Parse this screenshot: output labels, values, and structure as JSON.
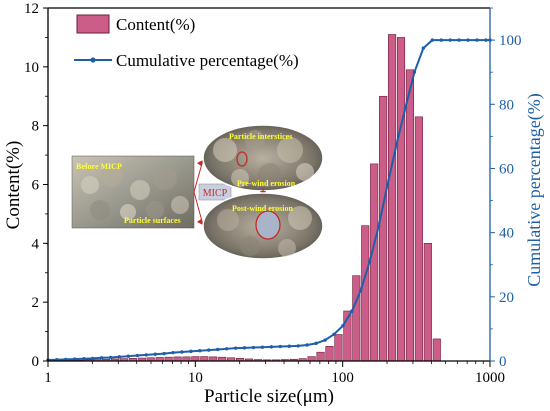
{
  "chart_data": {
    "type": "bar+line",
    "xlabel": "Particle size(μm)",
    "ylabel": "Content(%)",
    "y2label": "Cumulative percentage(%)",
    "xscale": "log",
    "xlim": [
      1,
      1000
    ],
    "ylim": [
      0,
      12
    ],
    "y2lim": [
      0,
      110
    ],
    "x_ticks": [
      "1",
      "10",
      "100",
      "1000"
    ],
    "y_ticks": [
      "0",
      "2",
      "4",
      "6",
      "8",
      "10",
      "12"
    ],
    "y2_ticks": [
      "0",
      "20",
      "40",
      "60",
      "80",
      "100"
    ],
    "legend": [
      "Content(%)",
      "Cumulative percentage(%)"
    ],
    "legend_position": "top-left",
    "colors": {
      "bar_fill": "#cc5c88",
      "bar_stroke": "#6b1e3b",
      "line": "#1f5fa8",
      "right_axis": "#1f5fa8"
    },
    "series": [
      {
        "name": "Content(%)",
        "type": "bar",
        "x": [
          1,
          1.15,
          1.32,
          1.52,
          1.75,
          2.01,
          2.31,
          2.66,
          3.05,
          3.51,
          4.04,
          4.64,
          5.34,
          6.14,
          7.06,
          8.12,
          9.33,
          10.73,
          12.34,
          14.19,
          16.32,
          18.77,
          21.58,
          24.82,
          28.54,
          32.82,
          37.74,
          43.4,
          49.91,
          57.4,
          66.0,
          75.9,
          87.3,
          100.4,
          115.4,
          132.7,
          152.6,
          175.5,
          201.8,
          232.1,
          266.9,
          306.9,
          353.0,
          405.9
        ],
        "values": [
          0.02,
          0.02,
          0.03,
          0.03,
          0.04,
          0.05,
          0.06,
          0.07,
          0.08,
          0.09,
          0.1,
          0.11,
          0.12,
          0.13,
          0.14,
          0.14,
          0.15,
          0.15,
          0.14,
          0.13,
          0.11,
          0.09,
          0.07,
          0.05,
          0.04,
          0.04,
          0.05,
          0.06,
          0.08,
          0.15,
          0.3,
          0.5,
          0.9,
          1.7,
          2.9,
          4.6,
          6.7,
          9.0,
          11.1,
          11.0,
          9.9,
          8.3,
          4.0,
          0.75
        ]
      },
      {
        "name": "Cumulative percentage(%)",
        "type": "line",
        "axis": "right",
        "x": [
          1,
          1.15,
          1.32,
          1.52,
          1.75,
          2.01,
          2.31,
          2.66,
          3.05,
          3.51,
          4.04,
          4.64,
          5.34,
          6.14,
          7.06,
          8.12,
          9.33,
          10.73,
          12.34,
          14.19,
          16.32,
          18.77,
          21.58,
          24.82,
          28.54,
          32.82,
          37.74,
          43.4,
          49.91,
          57.4,
          66.0,
          75.9,
          87.3,
          100.4,
          115.4,
          132.7,
          152.6,
          175.5,
          201.8,
          232.1,
          266.9,
          306.9,
          353.0,
          405.9,
          466.8,
          536.8,
          617.3,
          709.9,
          816.4,
          938.9,
          1000
        ],
        "values": [
          0.3,
          0.4,
          0.5,
          0.6,
          0.7,
          0.8,
          1.0,
          1.1,
          1.3,
          1.5,
          1.7,
          1.9,
          2.1,
          2.3,
          2.6,
          2.8,
          3.0,
          3.2,
          3.4,
          3.6,
          3.8,
          4.0,
          4.1,
          4.2,
          4.3,
          4.4,
          4.5,
          4.6,
          4.7,
          5.0,
          5.5,
          6.5,
          8.3,
          11.0,
          15.5,
          22.0,
          31.0,
          42.0,
          55.0,
          67.5,
          79.0,
          90.0,
          97.5,
          100,
          100,
          100,
          100,
          100,
          100,
          100,
          100
        ]
      }
    ],
    "inset": {
      "labels": {
        "before": "Before MICP",
        "surfaces": "Particle surfaces",
        "micp": "MICP",
        "interstices": "Particle interstices",
        "pre": "Pre-wind erosion",
        "post": "Post-wind erosion"
      }
    }
  }
}
